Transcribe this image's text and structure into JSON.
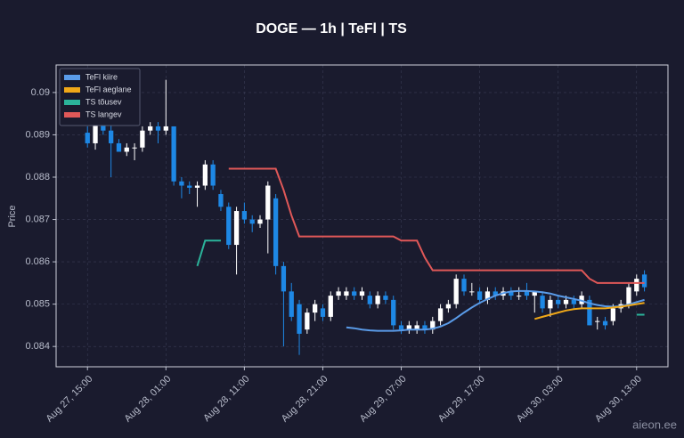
{
  "chart_data": {
    "type": "candlestick",
    "title": "DOGE — 1h  |  TeFl  |  TS",
    "y_label": "Price",
    "watermark": "aieon.ee",
    "x": [
      "Aug 27, 15:00",
      "Aug 27, 16:00",
      "Aug 27, 17:00",
      "Aug 27, 18:00",
      "Aug 27, 19:00",
      "Aug 27, 20:00",
      "Aug 27, 21:00",
      "Aug 27, 22:00",
      "Aug 27, 23:00",
      "Aug 28, 00:00",
      "Aug 28, 01:00",
      "Aug 28, 02:00",
      "Aug 28, 03:00",
      "Aug 28, 04:00",
      "Aug 28, 05:00",
      "Aug 28, 06:00",
      "Aug 28, 07:00",
      "Aug 28, 08:00",
      "Aug 28, 09:00",
      "Aug 28, 10:00",
      "Aug 28, 11:00",
      "Aug 28, 12:00",
      "Aug 28, 13:00",
      "Aug 28, 14:00",
      "Aug 28, 15:00",
      "Aug 28, 16:00",
      "Aug 28, 17:00",
      "Aug 28, 18:00",
      "Aug 28, 19:00",
      "Aug 28, 20:00",
      "Aug 28, 21:00",
      "Aug 28, 22:00",
      "Aug 28, 23:00",
      "Aug 29, 00:00",
      "Aug 29, 01:00",
      "Aug 29, 02:00",
      "Aug 29, 03:00",
      "Aug 29, 04:00",
      "Aug 29, 05:00",
      "Aug 29, 06:00",
      "Aug 29, 07:00",
      "Aug 29, 08:00",
      "Aug 29, 09:00",
      "Aug 29, 10:00",
      "Aug 29, 11:00",
      "Aug 29, 12:00",
      "Aug 29, 13:00",
      "Aug 29, 14:00",
      "Aug 29, 15:00",
      "Aug 29, 16:00",
      "Aug 29, 17:00",
      "Aug 29, 18:00",
      "Aug 29, 19:00",
      "Aug 29, 20:00",
      "Aug 29, 21:00",
      "Aug 29, 22:00",
      "Aug 29, 23:00",
      "Aug 30, 00:00",
      "Aug 30, 01:00",
      "Aug 30, 02:00",
      "Aug 30, 03:00",
      "Aug 30, 04:00",
      "Aug 30, 05:00",
      "Aug 30, 06:00",
      "Aug 30, 07:00",
      "Aug 30, 08:00",
      "Aug 30, 09:00",
      "Aug 30, 10:00",
      "Aug 30, 11:00",
      "Aug 30, 12:00",
      "Aug 30, 13:00",
      "Aug 30, 14:00"
    ],
    "open": [
      0.08905,
      0.0888,
      0.08925,
      0.0891,
      0.0888,
      0.0886,
      0.0887,
      0.0887,
      0.0891,
      0.0892,
      0.0891,
      0.0892,
      0.0879,
      0.0878,
      0.08775,
      0.0878,
      0.0883,
      0.0876,
      0.0873,
      0.0864,
      0.0872,
      0.087,
      0.0869,
      0.087,
      0.0875,
      0.0859,
      0.0853,
      0.085,
      0.0844,
      0.0848,
      0.0849,
      0.0847,
      0.0852,
      0.0852,
      0.0853,
      0.0852,
      0.0852,
      0.085,
      0.0852,
      0.0851,
      0.0845,
      0.0844,
      0.0844,
      0.0845,
      0.0844,
      0.0846,
      0.0849,
      0.085,
      0.0856,
      0.0853,
      0.0853,
      0.0851,
      0.0853,
      0.0852,
      0.0853,
      0.0852,
      0.0853,
      0.0852,
      0.0852,
      0.0849,
      0.0851,
      0.085,
      0.0851,
      0.085,
      0.0851,
      0.0846,
      0.0846,
      0.0846,
      0.0849,
      0.085,
      0.0853,
      0.0857
    ],
    "high": [
      0.0892,
      0.08935,
      0.0893,
      0.08925,
      0.0889,
      0.0888,
      0.0888,
      0.0892,
      0.0893,
      0.0893,
      0.0903,
      0.0892,
      0.088,
      0.0879,
      0.0879,
      0.0884,
      0.0884,
      0.0877,
      0.0874,
      0.0873,
      0.0874,
      0.0871,
      0.0871,
      0.0879,
      0.0876,
      0.086,
      0.0855,
      0.0851,
      0.0849,
      0.0851,
      0.085,
      0.0853,
      0.0854,
      0.0854,
      0.0854,
      0.0854,
      0.0853,
      0.0853,
      0.0853,
      0.0852,
      0.0846,
      0.0846,
      0.0846,
      0.0846,
      0.0847,
      0.085,
      0.0851,
      0.0857,
      0.0857,
      0.0855,
      0.0854,
      0.0854,
      0.0854,
      0.0854,
      0.0854,
      0.0854,
      0.0855,
      0.0853,
      0.0853,
      0.0852,
      0.0852,
      0.0852,
      0.0852,
      0.0853,
      0.0852,
      0.0847,
      0.0847,
      0.085,
      0.0851,
      0.0855,
      0.0857,
      0.0858
    ],
    "low": [
      0.0887,
      0.08865,
      0.089,
      0.088,
      0.0886,
      0.0885,
      0.0884,
      0.0886,
      0.089,
      0.0888,
      0.089,
      0.0878,
      0.0875,
      0.0876,
      0.0873,
      0.0877,
      0.0877,
      0.0872,
      0.0863,
      0.0857,
      0.0869,
      0.0867,
      0.0868,
      0.0862,
      0.0857,
      0.084,
      0.0846,
      0.0838,
      0.0843,
      0.0846,
      0.0846,
      0.0846,
      0.0851,
      0.0851,
      0.0851,
      0.0851,
      0.0849,
      0.0849,
      0.085,
      0.0844,
      0.0843,
      0.0843,
      0.0843,
      0.0843,
      0.0843,
      0.0845,
      0.0848,
      0.0849,
      0.0852,
      0.0852,
      0.085,
      0.085,
      0.0851,
      0.0851,
      0.0851,
      0.0851,
      0.0851,
      0.0848,
      0.0848,
      0.0847,
      0.0849,
      0.0849,
      0.0849,
      0.0849,
      0.0845,
      0.0844,
      0.0844,
      0.0845,
      0.0848,
      0.0849,
      0.0852,
      0.0853
    ],
    "close": [
      0.0888,
      0.08925,
      0.0891,
      0.0888,
      0.0886,
      0.0887,
      0.0887,
      0.0891,
      0.0892,
      0.0891,
      0.0892,
      0.0879,
      0.0878,
      0.08775,
      0.0878,
      0.0883,
      0.0878,
      0.0873,
      0.0864,
      0.0872,
      0.087,
      0.0869,
      0.087,
      0.0878,
      0.0859,
      0.0853,
      0.0847,
      0.0843,
      0.0848,
      0.085,
      0.0847,
      0.0852,
      0.0853,
      0.0853,
      0.0852,
      0.0853,
      0.085,
      0.0852,
      0.0851,
      0.0845,
      0.0844,
      0.0845,
      0.0845,
      0.0844,
      0.0846,
      0.0849,
      0.085,
      0.0856,
      0.0853,
      0.0853,
      0.0851,
      0.0853,
      0.0852,
      0.0853,
      0.0852,
      0.0852,
      0.0852,
      0.0853,
      0.0849,
      0.0851,
      0.085,
      0.0851,
      0.085,
      0.0852,
      0.0845,
      0.0846,
      0.0845,
      0.0849,
      0.085,
      0.0854,
      0.0856,
      0.0854
    ],
    "up_color": "#ffffff",
    "down_color": "#1e88e5",
    "series": [
      {
        "name": "TeFl kiire",
        "color": "#5a9be8",
        "values": [
          null,
          null,
          null,
          null,
          null,
          null,
          null,
          null,
          null,
          null,
          null,
          null,
          null,
          null,
          null,
          null,
          null,
          null,
          null,
          null,
          null,
          null,
          null,
          null,
          null,
          null,
          null,
          null,
          null,
          null,
          null,
          null,
          null,
          0.08445,
          0.08443,
          0.0844,
          0.08438,
          0.08437,
          0.08437,
          0.08437,
          0.08438,
          0.0844,
          0.0844,
          0.0844,
          0.08442,
          0.08447,
          0.08455,
          0.08467,
          0.0848,
          0.08492,
          0.08503,
          0.08512,
          0.0852,
          0.08526,
          0.0853,
          0.08531,
          0.08531,
          0.0853,
          0.08528,
          0.08525,
          0.0852,
          0.08516,
          0.08512,
          0.08508,
          0.08502,
          0.08498,
          0.08495,
          0.08494,
          0.08495,
          0.08499,
          0.08505,
          0.0851
        ]
      },
      {
        "name": "TeFl aeglane",
        "color": "#f0a818",
        "values": [
          null,
          null,
          null,
          null,
          null,
          null,
          null,
          null,
          null,
          null,
          null,
          null,
          null,
          null,
          null,
          null,
          null,
          null,
          null,
          null,
          null,
          null,
          null,
          null,
          null,
          null,
          null,
          null,
          null,
          null,
          null,
          null,
          null,
          null,
          null,
          null,
          null,
          null,
          null,
          null,
          null,
          null,
          null,
          null,
          null,
          null,
          null,
          null,
          null,
          null,
          null,
          null,
          null,
          null,
          null,
          null,
          null,
          0.08465,
          0.0847,
          0.08475,
          0.0848,
          0.08485,
          0.08488,
          0.0849,
          0.0849,
          0.0849,
          0.0849,
          0.08492,
          0.08494,
          0.08497,
          0.085,
          0.08503
        ]
      },
      {
        "name": "TS tõusev",
        "color": "#2bb39a",
        "values": [
          null,
          null,
          null,
          null,
          null,
          null,
          null,
          null,
          null,
          null,
          null,
          null,
          null,
          null,
          0.0859,
          0.0865,
          0.0865,
          0.0865,
          null,
          null,
          null,
          null,
          null,
          null,
          null,
          null,
          null,
          null,
          null,
          null,
          null,
          null,
          null,
          null,
          null,
          null,
          null,
          null,
          null,
          null,
          null,
          null,
          null,
          null,
          null,
          null,
          null,
          null,
          null,
          null,
          null,
          null,
          null,
          null,
          null,
          null,
          null,
          null,
          null,
          null,
          null,
          null,
          null,
          null,
          null,
          null,
          null,
          null,
          null,
          null,
          0.08475,
          0.08475
        ]
      },
      {
        "name": "TS langev",
        "color": "#e05858",
        "values": [
          null,
          null,
          null,
          null,
          null,
          null,
          null,
          null,
          null,
          null,
          null,
          null,
          null,
          null,
          null,
          null,
          null,
          null,
          0.0882,
          0.0882,
          0.0882,
          0.0882,
          0.0882,
          0.0882,
          0.0882,
          0.0877,
          0.0871,
          0.0866,
          0.0866,
          0.0866,
          0.0866,
          0.0866,
          0.0866,
          0.0866,
          0.0866,
          0.0866,
          0.0866,
          0.0866,
          0.0866,
          0.0866,
          0.0865,
          0.0865,
          0.0865,
          0.0861,
          0.0858,
          0.0858,
          0.0858,
          0.0858,
          0.0858,
          0.0858,
          0.0858,
          0.0858,
          0.0858,
          0.0858,
          0.0858,
          0.0858,
          0.0858,
          0.0858,
          0.0858,
          0.0858,
          0.0858,
          0.0858,
          0.0858,
          0.0858,
          0.0856,
          0.0855,
          0.0855,
          0.0855,
          0.0855,
          0.0855,
          0.0855,
          0.0855
        ]
      }
    ],
    "xlim": [
      "Aug 27, 11:00",
      "Aug 30, 17:00"
    ],
    "xticks": [
      "Aug 27, 15:00",
      "Aug 28, 01:00",
      "Aug 28, 11:00",
      "Aug 28, 21:00",
      "Aug 29, 07:00",
      "Aug 29, 17:00",
      "Aug 30, 03:00",
      "Aug 30, 13:00"
    ],
    "ylim": [
      0.08352,
      0.09065
    ],
    "yticks": [
      0.084,
      0.085,
      0.086,
      0.087,
      0.088,
      0.089,
      0.09
    ],
    "grid": true,
    "legend": "upper left"
  }
}
